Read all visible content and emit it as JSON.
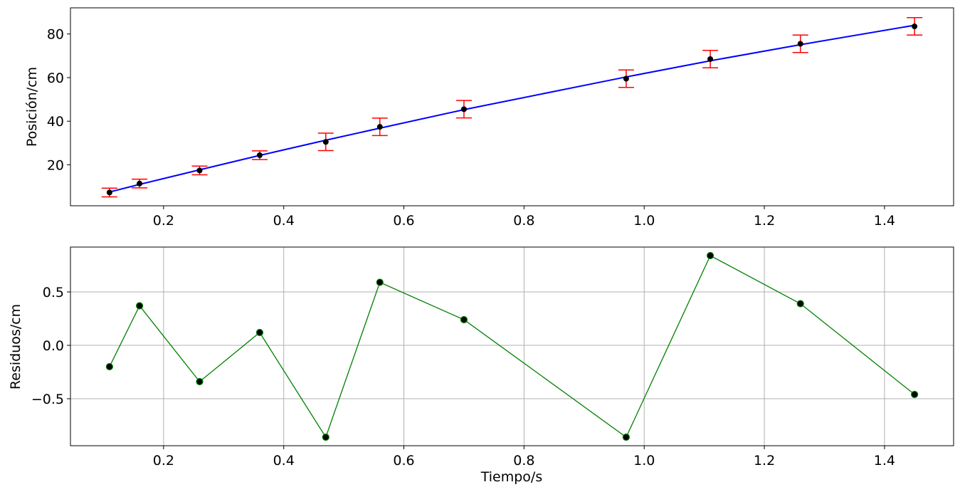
{
  "chart_data": [
    {
      "type": "scatter",
      "xlabel": "",
      "ylabel": "Posición/cm",
      "xlim": [
        0.045,
        1.515
      ],
      "ylim": [
        1.2,
        92.0
      ],
      "grid": false,
      "xticks": [
        0.2,
        0.4,
        0.6,
        0.8,
        1.0,
        1.2,
        1.4
      ],
      "xtick_labels": [
        "0.2",
        "0.4",
        "0.6",
        "0.8",
        "1.0",
        "1.2",
        "1.4"
      ],
      "yticks": [
        20,
        40,
        60,
        80
      ],
      "ytick_labels": [
        "20",
        "40",
        "60",
        "80"
      ],
      "series": [
        {
          "kind": "errorbar-points",
          "color": "#000000",
          "errcolor": "#ff0000",
          "x": [
            0.11,
            0.16,
            0.26,
            0.36,
            0.47,
            0.56,
            0.7,
            0.97,
            1.11,
            1.26,
            1.45
          ],
          "y": [
            7.3,
            11.4,
            17.4,
            24.4,
            30.5,
            37.4,
            45.5,
            59.5,
            68.5,
            75.5,
            83.5
          ],
          "err": [
            2.0,
            2.0,
            2.0,
            2.0,
            4.0,
            4.0,
            4.0,
            4.0,
            4.0,
            4.0,
            4.0
          ]
        },
        {
          "kind": "fit-line",
          "color": "#0000ff",
          "x": [
            0.11,
            0.16,
            0.26,
            0.36,
            0.47,
            0.56,
            0.7,
            0.97,
            1.11,
            1.26,
            1.45
          ],
          "y": [
            7.5,
            11.0,
            17.7,
            24.3,
            31.3,
            36.8,
            45.3,
            60.3,
            67.7,
            75.1,
            84.0
          ]
        }
      ]
    },
    {
      "type": "line",
      "xlabel": "Tiempo/s",
      "ylabel": "Residuos/cm",
      "xlim": [
        0.045,
        1.515
      ],
      "ylim": [
        -0.94,
        0.92
      ],
      "grid": true,
      "xticks": [
        0.2,
        0.4,
        0.6,
        0.8,
        1.0,
        1.2,
        1.4
      ],
      "xtick_labels": [
        "0.2",
        "0.4",
        "0.6",
        "0.8",
        "1.0",
        "1.2",
        "1.4"
      ],
      "yticks": [
        -0.5,
        0.0,
        0.5
      ],
      "ytick_labels": [
        "−0.5",
        "0.0",
        "0.5"
      ],
      "series": [
        {
          "kind": "residuals",
          "color": "#008000",
          "marker_color": "#000000",
          "x": [
            0.11,
            0.16,
            0.26,
            0.36,
            0.47,
            0.56,
            0.7,
            0.97,
            1.11,
            1.26,
            1.45
          ],
          "y": [
            -0.2,
            0.37,
            -0.34,
            0.12,
            -0.86,
            0.59,
            0.24,
            -0.86,
            0.84,
            0.39,
            -0.46
          ]
        }
      ]
    }
  ]
}
